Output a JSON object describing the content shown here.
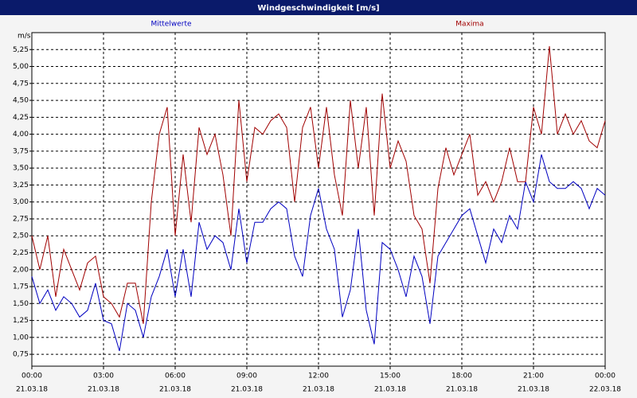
{
  "chart_data": {
    "type": "line",
    "title": "Windgeschwindigkeit [m/s]",
    "y_label": "m/s",
    "x": [
      0,
      20,
      40,
      60,
      80,
      100,
      120,
      140,
      160,
      180,
      200,
      220,
      240,
      260,
      280,
      300,
      320,
      340,
      360,
      380,
      400,
      420,
      440,
      460,
      480,
      500,
      520,
      540,
      560,
      580,
      600,
      620,
      640,
      660,
      680,
      700,
      720,
      740,
      760,
      780,
      800,
      820,
      840,
      860,
      880,
      900,
      920,
      940,
      960,
      980,
      1000,
      1020,
      1040,
      1060,
      1080,
      1100,
      1120,
      1140,
      1160,
      1180,
      1200,
      1220,
      1240,
      1260,
      1280,
      1300,
      1320,
      1340,
      1360,
      1380,
      1400,
      1420,
      1440
    ],
    "series": [
      {
        "name": "Mittelwerte",
        "color": "#0000c0",
        "values": [
          1.9,
          1.5,
          1.7,
          1.4,
          1.6,
          1.5,
          1.3,
          1.4,
          1.8,
          1.25,
          1.2,
          0.8,
          1.5,
          1.4,
          1.0,
          1.6,
          1.9,
          2.3,
          1.6,
          2.3,
          1.6,
          2.7,
          2.3,
          2.5,
          2.4,
          2.0,
          2.9,
          2.1,
          2.7,
          2.7,
          2.9,
          3.0,
          2.9,
          2.2,
          1.9,
          2.8,
          3.2,
          2.6,
          2.3,
          1.3,
          1.7,
          2.6,
          1.4,
          0.9,
          2.4,
          2.3,
          2.0,
          1.6,
          2.2,
          1.9,
          1.2,
          2.2,
          2.4,
          2.6,
          2.8,
          2.9,
          2.5,
          2.1,
          2.6,
          2.4,
          2.8,
          2.6,
          3.3,
          3.0,
          3.7,
          3.3,
          3.2,
          3.2,
          3.3,
          3.2,
          2.9,
          3.2,
          3.1
        ]
      },
      {
        "name": "Maxima",
        "color": "#a00000",
        "values": [
          2.5,
          2.0,
          2.5,
          1.6,
          2.3,
          2.0,
          1.7,
          2.1,
          2.2,
          1.6,
          1.5,
          1.3,
          1.8,
          1.8,
          1.2,
          3.0,
          4.0,
          4.4,
          2.5,
          3.7,
          2.7,
          4.1,
          3.7,
          4.0,
          3.4,
          2.5,
          4.5,
          3.3,
          4.1,
          4.0,
          4.2,
          4.3,
          4.1,
          3.0,
          4.1,
          4.4,
          3.5,
          4.4,
          3.4,
          2.8,
          4.5,
          3.5,
          4.4,
          2.8,
          4.6,
          3.5,
          3.9,
          3.6,
          2.8,
          2.6,
          1.8,
          3.2,
          3.8,
          3.4,
          3.7,
          4.0,
          3.1,
          3.3,
          3.0,
          3.3,
          3.8,
          3.3,
          3.3,
          4.4,
          4.0,
          5.3,
          4.0,
          4.3,
          4.0,
          4.2,
          3.9,
          3.8,
          4.2
        ]
      }
    ],
    "xlim": [
      0,
      1440
    ],
    "xticks": [
      {
        "value": 0,
        "label": "00:00"
      },
      {
        "value": 180,
        "label": "03:00"
      },
      {
        "value": 360,
        "label": "06:00"
      },
      {
        "value": 540,
        "label": "09:00"
      },
      {
        "value": 720,
        "label": "12:00"
      },
      {
        "value": 900,
        "label": "15:00"
      },
      {
        "value": 1080,
        "label": "18:00"
      },
      {
        "value": 1260,
        "label": "21:00"
      },
      {
        "value": 1440,
        "label": "00:00"
      }
    ],
    "xtick_dates": [
      "21.03.18",
      "21.03.18",
      "21.03.18",
      "21.03.18",
      "21.03.18",
      "21.03.18",
      "21.03.18",
      "21.03.18",
      "22.03.18"
    ],
    "ylim": [
      0.575,
      5.5
    ],
    "yticks": [
      {
        "value": 0.75,
        "label": "0,75"
      },
      {
        "value": 1.0,
        "label": "1,00"
      },
      {
        "value": 1.25,
        "label": "1,25"
      },
      {
        "value": 1.5,
        "label": "1,50"
      },
      {
        "value": 1.75,
        "label": "1,75"
      },
      {
        "value": 2.0,
        "label": "2,00"
      },
      {
        "value": 2.25,
        "label": "2,25"
      },
      {
        "value": 2.5,
        "label": "2,50"
      },
      {
        "value": 2.75,
        "label": "2,75"
      },
      {
        "value": 3.0,
        "label": "3,00"
      },
      {
        "value": 3.25,
        "label": "3,25"
      },
      {
        "value": 3.5,
        "label": "3,50"
      },
      {
        "value": 3.75,
        "label": "3,75"
      },
      {
        "value": 4.0,
        "label": "4,00"
      },
      {
        "value": 4.25,
        "label": "4,25"
      },
      {
        "value": 4.5,
        "label": "4,50"
      },
      {
        "value": 4.75,
        "label": "4,75"
      },
      {
        "value": 5.0,
        "label": "5,00"
      },
      {
        "value": 5.25,
        "label": "5,25"
      }
    ],
    "grid": true
  }
}
